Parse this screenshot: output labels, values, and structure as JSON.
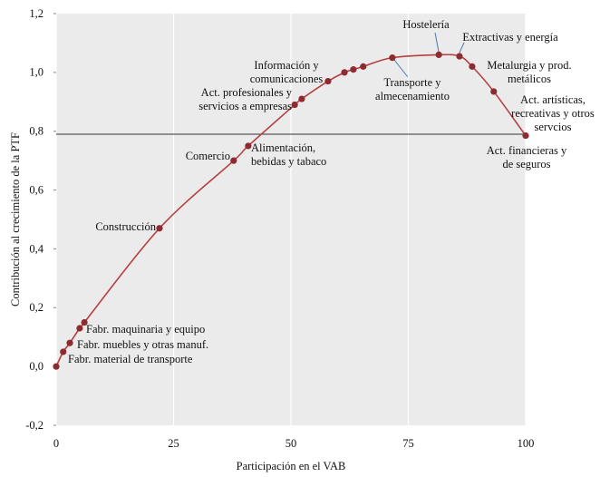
{
  "chart_data": {
    "type": "line",
    "xlabel": "Participación en el VAB",
    "ylabel": "Contribución al crecimiento de la PTF",
    "xlim": [
      0,
      100
    ],
    "ylim": [
      -0.2,
      1.2
    ],
    "xticks": [
      0,
      25,
      50,
      75,
      100
    ],
    "yticks": [
      {
        "value": -0.2,
        "label": "-0,2"
      },
      {
        "value": 0,
        "label": "0,0"
      },
      {
        "value": 0.2,
        "label": "0,2"
      },
      {
        "value": 0.4,
        "label": "0,4"
      },
      {
        "value": 0.6,
        "label": "0,6"
      },
      {
        "value": 0.8,
        "label": "0,8"
      },
      {
        "value": 1.0,
        "label": "1,0"
      },
      {
        "value": 1.2,
        "label": "1,2"
      }
    ],
    "grid": true,
    "reference_line": 0.79,
    "line_color": "#b5403f",
    "marker_color": "#8c2b30",
    "x": [
      0,
      1.5,
      2.9,
      5.0,
      6.0,
      22,
      37.8,
      40.9,
      50.8,
      52.3,
      57.9,
      61.4,
      63.3,
      65.4,
      71.6,
      81.5,
      85.9,
      88.6,
      93.2,
      100
    ],
    "values": [
      0,
      0.05,
      0.08,
      0.13,
      0.15,
      0.47,
      0.7,
      0.75,
      0.89,
      0.91,
      0.97,
      1.0,
      1.01,
      1.02,
      1.05,
      1.06,
      1.055,
      1.02,
      0.935,
      0.785
    ],
    "point_labels": [
      [
        "Fabr. material de transporte"
      ],
      null,
      [
        "Fabr. muebles y otras manuf."
      ],
      [
        "Fabr. maquinaria y equipo"
      ],
      null,
      [
        "Construcción"
      ],
      [
        "Comercio"
      ],
      [
        "Alimentación,",
        "bebidas y tabaco"
      ],
      [
        "Act. profesionales y",
        "servicios a empresas"
      ],
      null,
      [
        "Información y",
        "comunicaciones"
      ],
      null,
      null,
      null,
      [
        "Transporte y",
        "almecenamiento"
      ],
      [
        "Hostelería"
      ],
      [
        "Extractivas y energía"
      ],
      [
        "Metalurgia y prod.",
        "metálicos"
      ],
      [
        "Act. artísticas,",
        "recreativas y otros",
        "servcios"
      ],
      [
        "Act. financieras y",
        "de seguros"
      ]
    ]
  }
}
